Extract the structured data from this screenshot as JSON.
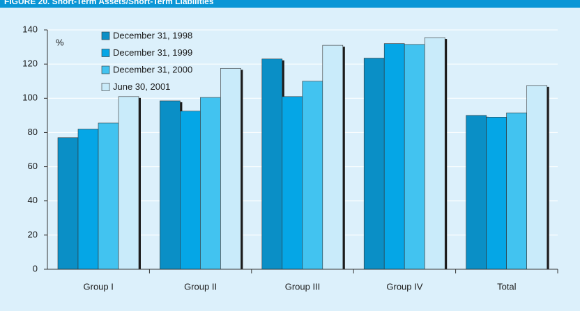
{
  "chart_data": {
    "type": "bar",
    "title": "FIGURE 20. Short-Term Assets/Short-Term Liabilities",
    "y_unit": "%",
    "categories": [
      "Group I",
      "Group II",
      "Group III",
      "Group IV",
      "Total"
    ],
    "series": [
      {
        "name": "December 31, 1998",
        "color": "#0a8fc6",
        "values": [
          77,
          98.5,
          123,
          123.5,
          90
        ]
      },
      {
        "name": "December 31, 1999",
        "color": "#05a6e6",
        "values": [
          82,
          92.5,
          101,
          132,
          89
        ]
      },
      {
        "name": "December 31, 2000",
        "color": "#42c3f0",
        "values": [
          85.5,
          100.5,
          110,
          131.5,
          91.5
        ]
      },
      {
        "name": "June 30, 2001",
        "color": "#c9ebfa",
        "values": [
          101,
          117.5,
          131,
          135.5,
          107.5
        ]
      }
    ],
    "ylim": [
      0,
      140
    ],
    "yticks": [
      0,
      20,
      40,
      60,
      80,
      100,
      120,
      140
    ],
    "grid": true
  }
}
